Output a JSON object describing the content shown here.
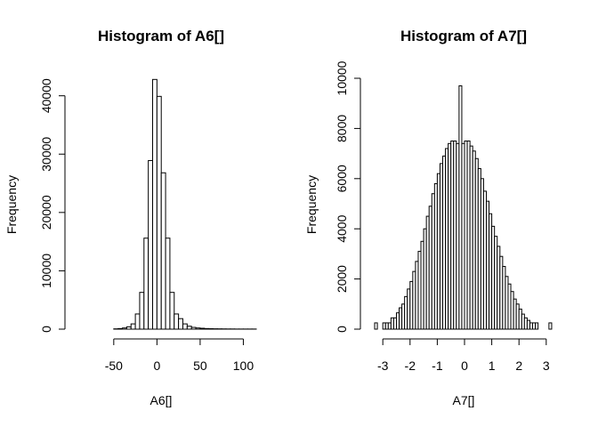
{
  "chart_data": [
    {
      "type": "bar",
      "title": "Histogram of A6[]",
      "xlabel": "A6[]",
      "ylabel": "Frequency",
      "xlim": [
        -90,
        115
      ],
      "ylim": [
        0,
        43000
      ],
      "xticks": [
        -50,
        0,
        50,
        100
      ],
      "yticks": [
        0,
        10000,
        20000,
        30000,
        40000
      ],
      "bin_width": 5,
      "bins_start": -90,
      "bins_end": 115,
      "values": [
        0,
        0,
        0,
        0,
        0,
        0,
        0,
        0,
        50,
        100,
        200,
        400,
        900,
        2600,
        6300,
        15600,
        28900,
        42800,
        39900,
        26800,
        15600,
        6300,
        2600,
        1800,
        900,
        500,
        300,
        200,
        150,
        100,
        80,
        60,
        50,
        40,
        30,
        30,
        20,
        20,
        20,
        20,
        20
      ]
    },
    {
      "type": "bar",
      "title": "Histogram of A7[]",
      "xlabel": "A7[]",
      "ylabel": "Frequency",
      "xlim": [
        -3.3,
        3.3
      ],
      "ylim": [
        0,
        10000
      ],
      "xticks": [
        -3,
        -2,
        -1,
        0,
        1,
        2,
        3
      ],
      "yticks": [
        0,
        2000,
        4000,
        6000,
        8000,
        10000
      ],
      "bin_width": 0.1,
      "bins_start": -3.3,
      "bins_end": 3.3,
      "values": [
        250,
        0,
        0,
        250,
        250,
        250,
        450,
        450,
        650,
        850,
        1000,
        1300,
        1600,
        1900,
        2300,
        2700,
        3100,
        3500,
        4000,
        4500,
        4900,
        5400,
        5800,
        6200,
        6600,
        6900,
        7200,
        7400,
        7500,
        7500,
        7400,
        9700,
        7400,
        7500,
        7500,
        7300,
        7100,
        6800,
        6400,
        6000,
        5500,
        5100,
        4600,
        4100,
        3700,
        3300,
        2900,
        2500,
        2100,
        1800,
        1500,
        1200,
        1000,
        800,
        600,
        450,
        350,
        250,
        250,
        250,
        0,
        0,
        0,
        0,
        250,
        0
      ]
    }
  ]
}
